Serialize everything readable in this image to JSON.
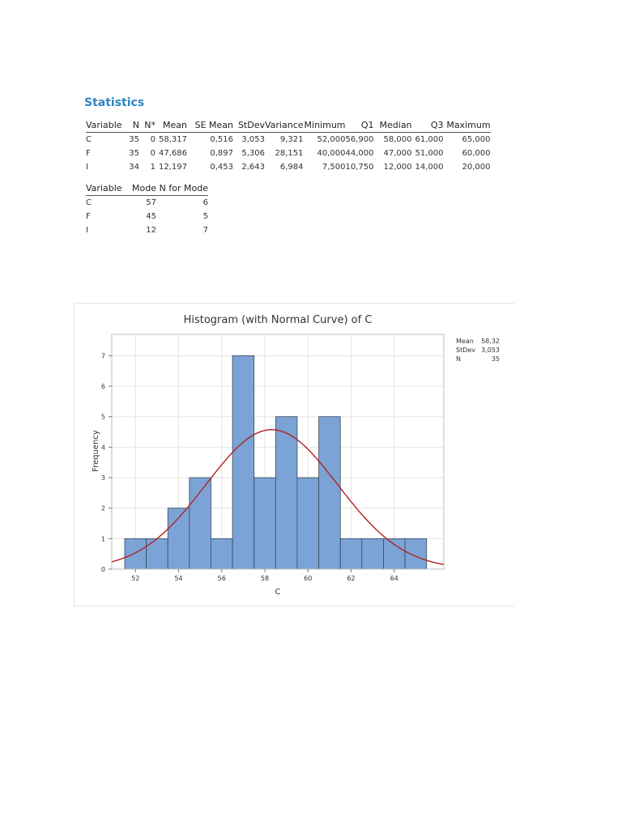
{
  "statistics": {
    "title": "Statistics",
    "headers": [
      "Variable",
      "N",
      "N*",
      "Mean",
      "SE Mean",
      "StDev",
      "Variance",
      "Minimum",
      "Q1",
      "Median",
      "Q3",
      "Maximum"
    ],
    "rows": [
      [
        "C",
        "35",
        "0",
        "58,317",
        "0,516",
        "3,053",
        "9,321",
        "52,000",
        "56,900",
        "58,000",
        "61,000",
        "65,000"
      ],
      [
        "F",
        "35",
        "0",
        "47,686",
        "0,897",
        "5,306",
        "28,151",
        "40,000",
        "44,000",
        "47,000",
        "51,000",
        "60,000"
      ],
      [
        "I",
        "34",
        "1",
        "12,197",
        "0,453",
        "2,643",
        "6,984",
        "7,500",
        "10,750",
        "12,000",
        "14,000",
        "20,000"
      ]
    ]
  },
  "mode_table": {
    "headers": [
      "Variable",
      "Mode",
      "N for Mode"
    ],
    "rows": [
      [
        "C",
        "57",
        "6"
      ],
      [
        "F",
        "45",
        "5"
      ],
      [
        "I",
        "12",
        "7"
      ]
    ]
  },
  "chart_data": {
    "type": "bar",
    "subtype": "histogram-with-normal-curve",
    "title": "Histogram (with Normal Curve) of C",
    "xlabel": "C",
    "ylabel": "Frequency",
    "bin_width": 1,
    "bins": [
      {
        "x0": 51.5,
        "x1": 52.5,
        "count": 1
      },
      {
        "x0": 52.5,
        "x1": 53.5,
        "count": 1
      },
      {
        "x0": 53.5,
        "x1": 54.5,
        "count": 2
      },
      {
        "x0": 54.5,
        "x1": 55.5,
        "count": 3
      },
      {
        "x0": 55.5,
        "x1": 56.5,
        "count": 1
      },
      {
        "x0": 56.5,
        "x1": 57.5,
        "count": 7
      },
      {
        "x0": 57.5,
        "x1": 58.5,
        "count": 3
      },
      {
        "x0": 58.5,
        "x1": 59.5,
        "count": 5
      },
      {
        "x0": 59.5,
        "x1": 60.5,
        "count": 3
      },
      {
        "x0": 60.5,
        "x1": 61.5,
        "count": 5
      },
      {
        "x0": 61.5,
        "x1": 62.5,
        "count": 1
      },
      {
        "x0": 62.5,
        "x1": 63.5,
        "count": 1
      },
      {
        "x0": 63.5,
        "x1": 64.5,
        "count": 1
      },
      {
        "x0": 64.5,
        "x1": 65.5,
        "count": 1
      }
    ],
    "normal_curve": {
      "mean": 58.32,
      "stdev": 3.053,
      "n": 35
    },
    "xlim": [
      50.9,
      66.3
    ],
    "ylim": [
      0,
      7.7
    ],
    "xticks": [
      52,
      54,
      56,
      58,
      60,
      62,
      64
    ],
    "yticks": [
      0,
      1,
      2,
      3,
      4,
      5,
      6,
      7
    ],
    "grid": true,
    "legend_position": "top-right",
    "legend": [
      {
        "label": "Mean",
        "value": "58,32"
      },
      {
        "label": "StDev",
        "value": "3,053"
      },
      {
        "label": "N",
        "value": "35"
      }
    ],
    "colors": {
      "bar_fill": "#7ba3d6",
      "bar_stroke": "#3c4a5a",
      "curve": "#b22222",
      "grid": "#e3e3e3",
      "plot_border": "#bdbdbd"
    }
  }
}
